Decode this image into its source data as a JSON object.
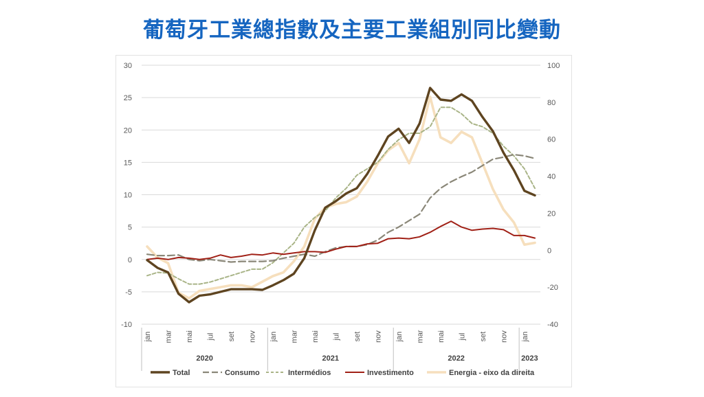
{
  "page": {
    "title": "葡萄牙工業總指數及主要工業組別同比變動"
  },
  "chart_data": {
    "type": "line",
    "title": "葡萄牙工業總指數及主要工業組別同比變動",
    "left_axis": {
      "range": [
        -10,
        30
      ],
      "ticks": [
        "-10",
        "-5",
        "0",
        "5",
        "10",
        "15",
        "20",
        "25",
        "30"
      ],
      "values": [
        -10,
        -5,
        0,
        5,
        10,
        15,
        20,
        25,
        30
      ]
    },
    "right_axis": {
      "range": [
        -40,
        100
      ],
      "ticks": [
        "-40",
        "-20",
        "0",
        "20",
        "40",
        "60",
        "80",
        "100"
      ],
      "values": [
        -40,
        -20,
        0,
        20,
        40,
        60,
        80,
        100
      ]
    },
    "grid": "horizontal",
    "legend_position": "bottom",
    "month_labels": [
      "jan",
      "mar",
      "mai",
      "jul",
      "set",
      "nov",
      "jan",
      "mar",
      "mai",
      "jul",
      "set",
      "nov",
      "jan",
      "mar",
      "mai",
      "jul",
      "set",
      "nov",
      "jan"
    ],
    "years": [
      {
        "label": "2020"
      },
      {
        "label": "2021"
      },
      {
        "label": "2022"
      },
      {
        "label": "2023"
      }
    ],
    "series": [
      {
        "name": "Total",
        "axis": "left",
        "color": "#5e4420",
        "style": "solid",
        "width": 3.4,
        "values": [
          -0.1,
          -1.3,
          -2.0,
          -5.3,
          -6.6,
          -5.6,
          -5.4,
          -5.0,
          -4.6,
          -4.6,
          -4.6,
          -4.7,
          -4.0,
          -3.2,
          -2.2,
          0.2,
          4.5,
          8.0,
          9.0,
          10.2,
          11.0,
          13.2,
          16.0,
          19.0,
          20.2,
          18.0,
          21.0,
          26.5,
          24.7,
          24.5,
          25.5,
          24.5,
          22.0,
          19.8,
          16.5,
          13.8,
          10.6,
          9.9
        ]
      },
      {
        "name": "Consumo",
        "axis": "left",
        "color": "#8a8778",
        "style": "longdash",
        "width": 2.2,
        "values": [
          0.8,
          0.6,
          0.6,
          0.7,
          0.0,
          -0.2,
          0.0,
          -0.2,
          -0.4,
          -0.3,
          -0.3,
          -0.3,
          -0.2,
          0.2,
          0.5,
          0.8,
          0.5,
          1.2,
          1.8,
          2.0,
          2.0,
          2.3,
          3.0,
          4.2,
          5.0,
          6.0,
          7.0,
          9.5,
          11.0,
          12.0,
          12.8,
          13.5,
          14.5,
          15.5,
          15.8,
          16.2,
          16.0,
          15.6
        ]
      },
      {
        "name": "Intermédios",
        "axis": "left",
        "color": "#a9b487",
        "style": "dash",
        "width": 2.0,
        "values": [
          -2.5,
          -2.0,
          -2.1,
          -3.0,
          -3.8,
          -3.8,
          -3.5,
          -3.0,
          -2.5,
          -2.0,
          -1.5,
          -1.5,
          -0.5,
          1.0,
          2.5,
          5.0,
          6.5,
          7.5,
          9.5,
          11.0,
          13.0,
          14.0,
          15.0,
          17.0,
          18.5,
          19.5,
          19.5,
          20.5,
          23.5,
          23.5,
          22.5,
          21.0,
          20.5,
          19.5,
          17.5,
          16.0,
          14.0,
          11.0
        ]
      },
      {
        "name": "Investimento",
        "axis": "left",
        "color": "#a02016",
        "style": "solid",
        "width": 2.0,
        "values": [
          0.0,
          0.2,
          0.0,
          0.3,
          0.2,
          0.0,
          0.2,
          0.7,
          0.3,
          0.5,
          0.8,
          0.7,
          1.0,
          0.8,
          1.0,
          1.2,
          1.2,
          1.1,
          1.6,
          2.0,
          2.0,
          2.4,
          2.5,
          3.2,
          3.3,
          3.2,
          3.5,
          4.2,
          5.1,
          5.9,
          5.0,
          4.5,
          4.7,
          4.8,
          4.6,
          3.7,
          3.7,
          3.3
        ]
      },
      {
        "name": "Energia - eixo da direita",
        "axis": "right",
        "color": "#f6dfbd",
        "style": "solid",
        "width": 3.6,
        "values": [
          2,
          -4,
          -7,
          -23,
          -26,
          -22,
          -21,
          -20,
          -19,
          -19,
          -20,
          -17,
          -14,
          -12,
          -6,
          2,
          17,
          23,
          25,
          26,
          29,
          37,
          47,
          54,
          58,
          47,
          60,
          83,
          61,
          58,
          64,
          61,
          47,
          33,
          22,
          15,
          3,
          4
        ]
      }
    ]
  }
}
